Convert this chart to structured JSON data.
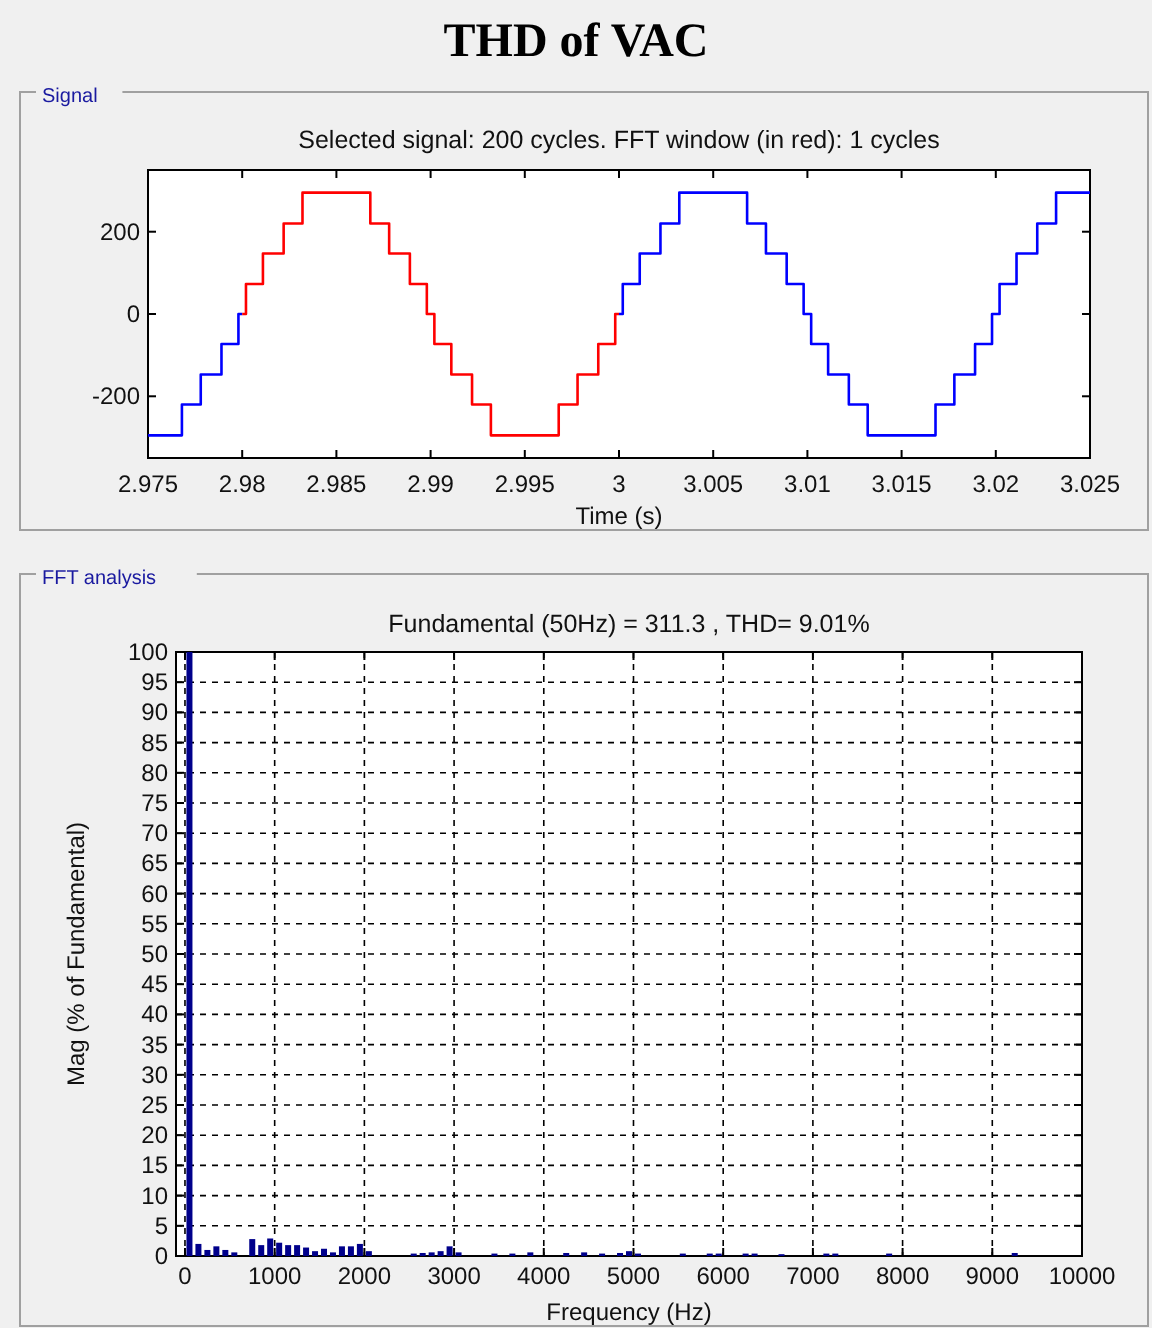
{
  "chart_data": [
    {
      "type": "step",
      "title": "THD of VAC",
      "subtitle": "Selected signal: 200 cycles. FFT window (in red): 1 cycles",
      "annotations": [
        "Signal"
      ],
      "xlabel": "Time (s)",
      "xlim": [
        2.975,
        3.025
      ],
      "ylim": [
        -350,
        350
      ],
      "xticks": [
        2.975,
        2.98,
        2.985,
        2.99,
        2.995,
        3,
        3.005,
        3.01,
        3.015,
        3.02,
        3.025
      ],
      "yticks": [
        -200,
        0,
        200
      ],
      "series": [
        {
          "color": "#0000ff",
          "x": [
            2.975,
            2.9768,
            2.9778,
            2.9789,
            2.9798,
            2.98
          ],
          "values": [
            -295,
            -220,
            -147,
            -73,
            0,
            0
          ]
        },
        {
          "color": "#ff0000",
          "x": [
            2.98,
            2.9802,
            2.9811,
            2.9822,
            2.9832,
            2.9868,
            2.9878,
            2.9889,
            2.9898,
            2.9902,
            2.9911,
            2.9922,
            2.9932,
            2.9968,
            2.9978,
            2.9989,
            2.9998,
            3
          ],
          "values": [
            0,
            73,
            147,
            220,
            295,
            220,
            147,
            73,
            0,
            -73,
            -147,
            -220,
            -295,
            -220,
            -147,
            -73,
            0,
            0
          ]
        },
        {
          "color": "#0000ff",
          "x": [
            3,
            3.0002,
            3.0011,
            3.0022,
            3.0032,
            3.0068,
            3.0078,
            3.0089,
            3.0098,
            3.0102,
            3.0111,
            3.0122,
            3.0132,
            3.0168,
            3.0178,
            3.0189,
            3.0198,
            3.0202,
            3.0211,
            3.0222,
            3.0232,
            3.025
          ],
          "values": [
            0,
            73,
            147,
            220,
            295,
            220,
            147,
            73,
            0,
            -73,
            -147,
            -220,
            -295,
            -220,
            -147,
            -73,
            0,
            73,
            147,
            220,
            295,
            295
          ]
        }
      ]
    },
    {
      "type": "bar",
      "title": "Fundamental (50Hz) = 311.3 , THD= 9.01%",
      "annotations": [
        "FFT analysis"
      ],
      "xlabel": "Frequency (Hz)",
      "ylabel": "Mag (% of Fundamental)",
      "color": "#00008b",
      "grid": true,
      "xlim": [
        -100,
        10000
      ],
      "ylim": [
        0,
        100
      ],
      "xticks": [
        0,
        1000,
        2000,
        3000,
        4000,
        5000,
        6000,
        7000,
        8000,
        9000,
        10000
      ],
      "yticks": [
        0,
        5,
        10,
        15,
        20,
        25,
        30,
        35,
        40,
        45,
        50,
        55,
        60,
        65,
        70,
        75,
        80,
        85,
        90,
        95,
        100
      ],
      "x": [
        50,
        150,
        250,
        350,
        450,
        550,
        750,
        850,
        950,
        1050,
        1150,
        1250,
        1350,
        1450,
        1550,
        1650,
        1750,
        1850,
        1950,
        2050,
        2550,
        2650,
        2750,
        2850,
        2950,
        3050,
        3450,
        3650,
        3850,
        4250,
        4450,
        4650,
        4850,
        4950,
        5050,
        5550,
        5850,
        5950,
        6250,
        6350,
        6650,
        7150,
        7250,
        7850,
        9250
      ],
      "values": [
        100,
        2,
        1,
        1.6,
        1,
        0.6,
        2.8,
        1.8,
        2.9,
        2.2,
        1.8,
        1.8,
        1.4,
        0.8,
        1.2,
        0.6,
        1.6,
        1.6,
        2,
        0.8,
        0.4,
        0.5,
        0.6,
        0.8,
        1.6,
        0.6,
        0.4,
        0.4,
        0.6,
        0.5,
        0.6,
        0.4,
        0.5,
        0.8,
        0.4,
        0.4,
        0.4,
        0.4,
        0.4,
        0.4,
        0.3,
        0.4,
        0.4,
        0.4,
        0.5
      ]
    }
  ]
}
